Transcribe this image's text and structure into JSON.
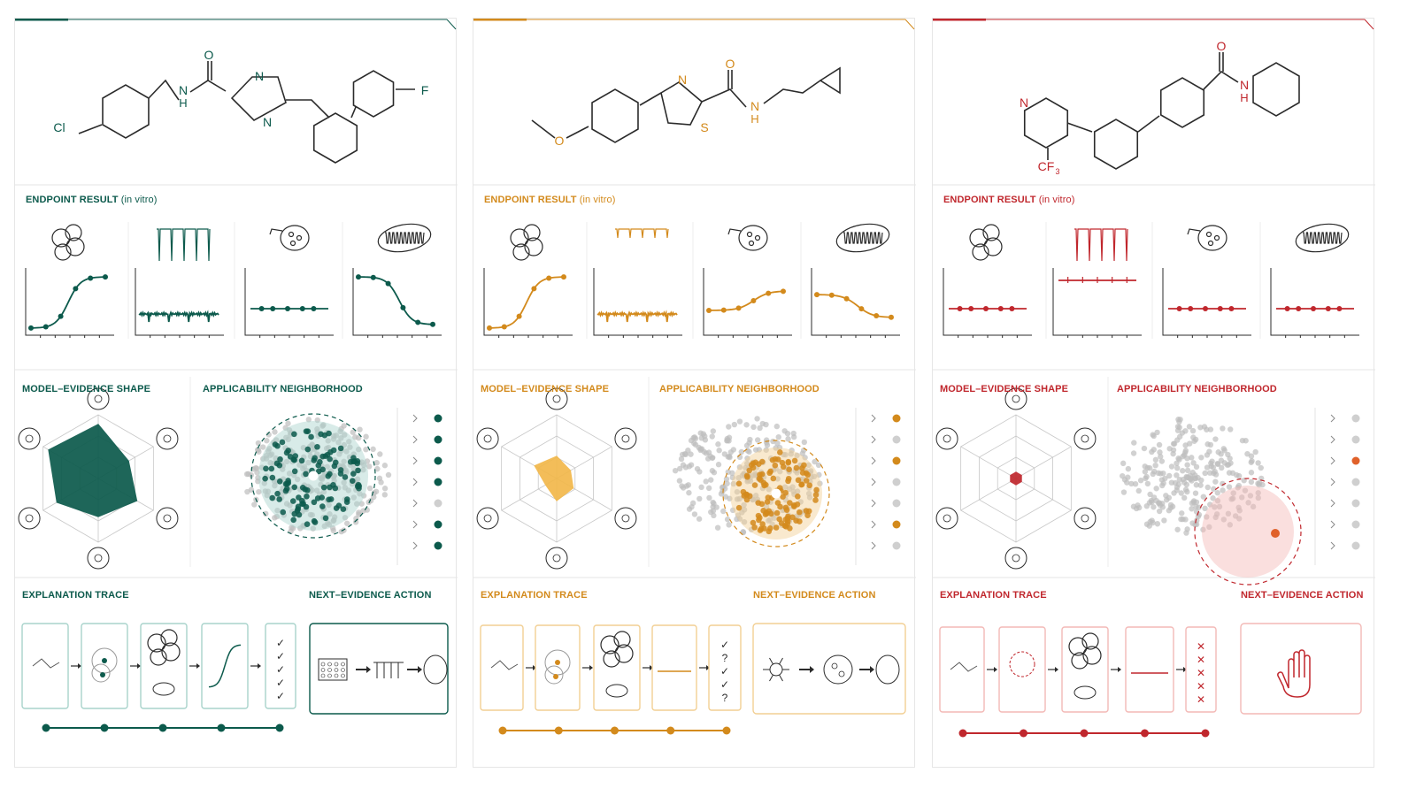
{
  "panels": [
    {
      "id": "teal",
      "color": "#0c5a4c",
      "light": "#a8d3cb",
      "labels": {
        "endpoint": "ENDPOINT RESULT",
        "endpoint_sub": " (in vitro)",
        "model": "MODEL–EVIDENCE SHAPE",
        "applicability": "APPLICABILITY NEIGHBORHOOD",
        "trace": "EXPLANATION TRACE",
        "action": "NEXT–EVIDENCE ACTION"
      },
      "atoms": [
        "Cl",
        "N",
        "H",
        "O",
        "N",
        "N",
        "F"
      ],
      "curves": [
        "sigmoid-up",
        "spike-trace",
        "flat",
        "sigmoid-down"
      ],
      "radar": [
        0.85,
        0.55,
        0.7,
        0.6,
        0.75,
        0.9
      ],
      "trace_status": [
        "check",
        "check",
        "check",
        "check",
        "check"
      ],
      "action_icon": "plate-trace-mito",
      "neighborhood": "in-domain"
    },
    {
      "id": "amber",
      "color": "#d38a1c",
      "light": "#f2cf93",
      "labels": {
        "endpoint": "ENDPOINT RESULT",
        "endpoint_sub": " (in vitro)",
        "model": "MODEL–EVIDENCE SHAPE",
        "applicability": "APPLICABILITY NEIGHBORHOOD",
        "trace": "EXPLANATION TRACE",
        "action": "NEXT–EVIDENCE ACTION"
      },
      "atoms": [
        "O",
        "N",
        "S",
        "O",
        "N",
        "H"
      ],
      "curves": [
        "sigmoid-up",
        "spike-trace",
        "slight-up",
        "slight-down"
      ],
      "radar": [
        0.35,
        0.25,
        0.3,
        0.35,
        0.2,
        0.4
      ],
      "trace_status": [
        "check",
        "?",
        "check",
        "check",
        "?"
      ],
      "action_icon": "neuron-organoid-mito",
      "neighborhood": "edge"
    },
    {
      "id": "red",
      "color": "#c0272d",
      "light": "#f3b9b6",
      "labels": {
        "endpoint": "ENDPOINT RESULT",
        "endpoint_sub": " (in vitro)",
        "model": "MODEL–EVIDENCE SHAPE",
        "applicability": "APPLICABILITY NEIGHBORHOOD",
        "trace": "EXPLANATION TRACE",
        "action": "NEXT–EVIDENCE ACTION"
      },
      "atoms": [
        "N",
        "CF",
        "3",
        "O",
        "N",
        "H"
      ],
      "curves": [
        "flat",
        "flat-high",
        "flat",
        "flat"
      ],
      "radar": [
        0.1,
        0.1,
        0.1,
        0.1,
        0.1,
        0.1
      ],
      "trace_status": [
        "x",
        "x",
        "x",
        "x",
        "x"
      ],
      "action_icon": "stop-hand",
      "neighborhood": "out-of-domain"
    }
  ]
}
